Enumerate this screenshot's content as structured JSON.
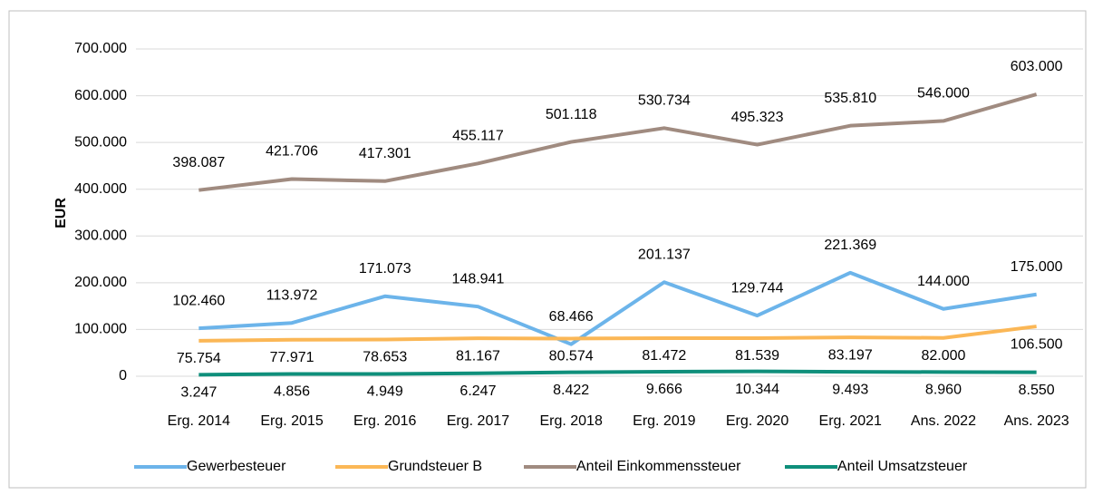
{
  "chart_data": {
    "type": "line",
    "y_label": "EUR",
    "categories": [
      "Erg. 2014",
      "Erg. 2015",
      "Erg. 2016",
      "Erg. 2017",
      "Erg. 2018",
      "Erg. 2019",
      "Erg. 2020",
      "Erg. 2021",
      "Ans. 2022",
      "Ans. 2023"
    ],
    "series": [
      {
        "name": "Gewerbesteuer",
        "color": "#6cb4ea",
        "values": [
          102460,
          113972,
          171073,
          148941,
          68466,
          201137,
          129744,
          221369,
          144000,
          175000
        ],
        "value_labels": [
          "102.460",
          "113.972",
          "171.073",
          "148.941",
          "68.466",
          "201.137",
          "129.744",
          "221.369",
          "144.000",
          "175.000"
        ]
      },
      {
        "name": "Grundsteuer B",
        "color": "#fbb756",
        "values": [
          75754,
          77971,
          78653,
          81167,
          80574,
          81472,
          81539,
          83197,
          82000,
          106500
        ],
        "value_labels": [
          "75.754",
          "77.971",
          "78.653",
          "81.167",
          "80.574",
          "81.472",
          "81.539",
          "83.197",
          "82.000",
          "106.500"
        ]
      },
      {
        "name": "Anteil Einkommenssteuer",
        "color": "#a08b80",
        "values": [
          398087,
          421706,
          417301,
          455117,
          501118,
          530734,
          495323,
          535810,
          546000,
          603000
        ],
        "value_labels": [
          "398.087",
          "421.706",
          "417.301",
          "455.117",
          "501.118",
          "530.734",
          "495.323",
          "535.810",
          "546.000",
          "603.000"
        ]
      },
      {
        "name": "Anteil Umsatzsteuer",
        "color": "#0f8f7b",
        "values": [
          3247,
          4856,
          4949,
          6247,
          8422,
          9666,
          10344,
          9493,
          8960,
          8550
        ],
        "value_labels": [
          "3.247",
          "4.856",
          "4.949",
          "6.247",
          "8.422",
          "9.666",
          "10.344",
          "9.493",
          "8.960",
          "8.550"
        ]
      }
    ],
    "ylim": [
      0,
      700000
    ],
    "yticks": [
      0,
      {
        "value": 100000,
        "label": "100.000"
      },
      {
        "value": 200000,
        "label": "200.000"
      },
      {
        "value": 300000,
        "label": "300.000"
      },
      {
        "value": 400000,
        "label": "400.000"
      },
      {
        "value": 500000,
        "label": "500.000"
      },
      {
        "value": 600000,
        "label": "600.000"
      },
      {
        "value": 700000,
        "label": "700.000"
      }
    ],
    "grid": true,
    "legend": "bottom"
  }
}
